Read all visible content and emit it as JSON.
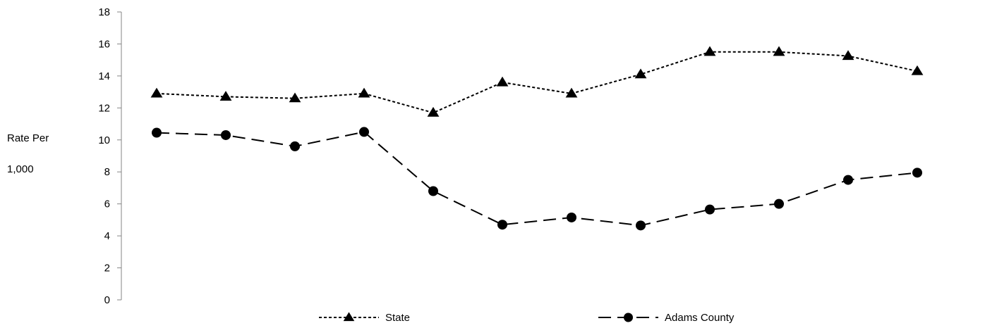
{
  "chart_data": {
    "type": "line",
    "title": "",
    "xlabel": "",
    "ylabel_lines": [
      "Rate Per",
      "1,000"
    ],
    "ylim": [
      0,
      18
    ],
    "yticks": [
      0,
      2,
      4,
      6,
      8,
      10,
      12,
      14,
      16,
      18
    ],
    "grid": false,
    "legend_position": "bottom",
    "x": [
      1,
      2,
      3,
      4,
      5,
      6,
      7,
      8,
      9,
      10,
      11,
      12
    ],
    "series": [
      {
        "name": "State",
        "values": [
          12.9,
          12.7,
          12.6,
          12.9,
          11.7,
          13.6,
          12.9,
          14.1,
          15.5,
          15.5,
          15.25,
          14.3
        ],
        "line_style": "dotted",
        "marker": "triangle",
        "color": "#000000"
      },
      {
        "name": "Adams County",
        "values": [
          10.45,
          10.3,
          9.6,
          10.5,
          6.8,
          4.7,
          5.15,
          4.65,
          5.65,
          6.0,
          7.5,
          7.95
        ],
        "line_style": "dashed",
        "marker": "circle",
        "color": "#000000"
      }
    ]
  }
}
